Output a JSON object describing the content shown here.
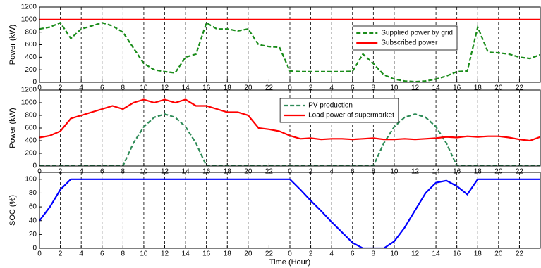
{
  "chart_data": [
    {
      "type": "line",
      "ylabel": "Power (kW)",
      "x": [
        0,
        1,
        2,
        3,
        4,
        5,
        6,
        7,
        8,
        9,
        10,
        11,
        12,
        13,
        14,
        15,
        16,
        17,
        18,
        19,
        20,
        21,
        22,
        23,
        24,
        25,
        26,
        27,
        28,
        29,
        30,
        31,
        32,
        33,
        34,
        35,
        36,
        37,
        38,
        39,
        40,
        41,
        42,
        43,
        44,
        45,
        46,
        47,
        48
      ],
      "xlim": [
        0,
        48
      ],
      "xticks": [
        0,
        2,
        4,
        6,
        8,
        10,
        12,
        14,
        16,
        18,
        20,
        22,
        {
          "value": 24,
          "label": "0"
        },
        {
          "value": 26,
          "label": "2"
        },
        {
          "value": 28,
          "label": "4"
        },
        {
          "value": 30,
          "label": "6"
        },
        {
          "value": 32,
          "label": "8"
        },
        {
          "value": 34,
          "label": "10"
        },
        {
          "value": 36,
          "label": "12"
        },
        {
          "value": 38,
          "label": "14"
        },
        {
          "value": 40,
          "label": "16"
        },
        {
          "value": 42,
          "label": "18"
        },
        {
          "value": 44,
          "label": "20"
        },
        {
          "value": 46,
          "label": "22"
        }
      ],
      "ylim": [
        0,
        1200
      ],
      "yticks": [
        0,
        200,
        400,
        600,
        800,
        1000,
        1200
      ],
      "grid": "x",
      "legend": "upper right",
      "series": [
        {
          "name": "Supplied power by grid",
          "color": "#1a8c1a",
          "style": "dashed",
          "values": [
            850,
            880,
            950,
            700,
            850,
            900,
            950,
            900,
            800,
            550,
            300,
            200,
            170,
            150,
            400,
            450,
            950,
            850,
            850,
            820,
            850,
            600,
            570,
            560,
            180,
            170,
            170,
            170,
            170,
            170,
            175,
            450,
            300,
            120,
            50,
            20,
            10,
            20,
            50,
            100,
            170,
            180,
            880,
            480,
            470,
            450,
            400,
            380,
            440
          ]
        },
        {
          "name": "Subscribed power",
          "color": "#ff0000",
          "style": "solid",
          "values": [
            1000,
            1000,
            1000,
            1000,
            1000,
            1000,
            1000,
            1000,
            1000,
            1000,
            1000,
            1000,
            1000,
            1000,
            1000,
            1000,
            1000,
            1000,
            1000,
            1000,
            1000,
            1000,
            1000,
            1000,
            1000,
            1000,
            1000,
            1000,
            1000,
            1000,
            1000,
            1000,
            1000,
            1000,
            1000,
            1000,
            1000,
            1000,
            1000,
            1000,
            1000,
            1000,
            1000,
            1000,
            1000,
            1000,
            1000,
            1000,
            1000
          ]
        }
      ]
    },
    {
      "type": "line",
      "ylabel": "Power (kW)",
      "x": [
        0,
        1,
        2,
        3,
        4,
        5,
        6,
        7,
        8,
        9,
        10,
        11,
        12,
        13,
        14,
        15,
        16,
        17,
        18,
        19,
        20,
        21,
        22,
        23,
        24,
        25,
        26,
        27,
        28,
        29,
        30,
        31,
        32,
        33,
        34,
        35,
        36,
        37,
        38,
        39,
        40,
        41,
        42,
        43,
        44,
        45,
        46,
        47,
        48
      ],
      "xlim": [
        0,
        48
      ],
      "xticks": [
        0,
        2,
        4,
        6,
        8,
        10,
        12,
        14,
        16,
        18,
        20,
        22,
        {
          "value": 24,
          "label": "0"
        },
        {
          "value": 26,
          "label": "2"
        },
        {
          "value": 28,
          "label": "4"
        },
        {
          "value": 30,
          "label": "6"
        },
        {
          "value": 32,
          "label": "8"
        },
        {
          "value": 34,
          "label": "10"
        },
        {
          "value": 36,
          "label": "12"
        },
        {
          "value": 38,
          "label": "14"
        },
        {
          "value": 40,
          "label": "16"
        },
        {
          "value": 42,
          "label": "18"
        },
        {
          "value": 44,
          "label": "20"
        },
        {
          "value": 46,
          "label": "22"
        }
      ],
      "ylim": [
        0,
        1200
      ],
      "yticks": [
        0,
        200,
        400,
        600,
        800,
        1000,
        1200
      ],
      "grid": "x",
      "legend": "upper center",
      "series": [
        {
          "name": "PV production",
          "color": "#2e8b57",
          "style": "dashed",
          "values": [
            0,
            0,
            0,
            0,
            0,
            0,
            0,
            0,
            0,
            360,
            620,
            770,
            820,
            770,
            620,
            360,
            0,
            0,
            0,
            0,
            0,
            0,
            0,
            0,
            0,
            0,
            0,
            0,
            0,
            0,
            0,
            0,
            0,
            360,
            620,
            770,
            820,
            770,
            620,
            360,
            0,
            0,
            0,
            0,
            0,
            0,
            0,
            0,
            0
          ]
        },
        {
          "name": "Load power of supermarket",
          "color": "#ff0000",
          "style": "solid",
          "values": [
            450,
            480,
            550,
            750,
            800,
            850,
            900,
            950,
            900,
            1000,
            1050,
            1000,
            1050,
            1000,
            1050,
            950,
            950,
            900,
            850,
            850,
            800,
            600,
            580,
            550,
            480,
            430,
            440,
            420,
            430,
            430,
            420,
            430,
            440,
            420,
            420,
            430,
            420,
            430,
            440,
            460,
            450,
            470,
            460,
            470,
            470,
            450,
            420,
            400,
            460
          ]
        }
      ]
    },
    {
      "type": "line",
      "ylabel": "SOC (%)",
      "xlabel": "Time (Hour)",
      "x": [
        0,
        1,
        2,
        3,
        4,
        5,
        6,
        7,
        8,
        9,
        10,
        11,
        12,
        13,
        14,
        15,
        16,
        17,
        18,
        19,
        20,
        21,
        22,
        23,
        24,
        25,
        26,
        27,
        28,
        29,
        30,
        31,
        32,
        33,
        34,
        35,
        36,
        37,
        38,
        39,
        40,
        41,
        42,
        43,
        44,
        45,
        46,
        47,
        48
      ],
      "xlim": [
        0,
        48
      ],
      "xticks": [
        0,
        2,
        4,
        6,
        8,
        10,
        12,
        14,
        16,
        18,
        20,
        22,
        {
          "value": 24,
          "label": "0"
        },
        {
          "value": 26,
          "label": "2"
        },
        {
          "value": 28,
          "label": "4"
        },
        {
          "value": 30,
          "label": "6"
        },
        {
          "value": 32,
          "label": "8"
        },
        {
          "value": 34,
          "label": "10"
        },
        {
          "value": 36,
          "label": "12"
        },
        {
          "value": 38,
          "label": "14"
        },
        {
          "value": 40,
          "label": "16"
        },
        {
          "value": 42,
          "label": "18"
        },
        {
          "value": 44,
          "label": "20"
        },
        {
          "value": 46,
          "label": "22"
        }
      ],
      "ylim": [
        0,
        110
      ],
      "yticks": [
        0,
        20,
        40,
        60,
        80,
        100
      ],
      "grid": "x",
      "series": [
        {
          "color": "#0000ff",
          "style": "solid",
          "values": [
            40,
            60,
            85,
            100,
            100,
            100,
            100,
            100,
            100,
            100,
            100,
            100,
            100,
            100,
            100,
            100,
            100,
            100,
            100,
            100,
            100,
            100,
            100,
            100,
            100,
            85,
            69,
            54,
            38,
            23,
            8,
            0,
            0,
            0,
            10,
            30,
            55,
            80,
            95,
            98,
            90,
            78,
            100,
            100,
            100,
            100,
            100,
            100,
            100
          ]
        }
      ]
    }
  ]
}
